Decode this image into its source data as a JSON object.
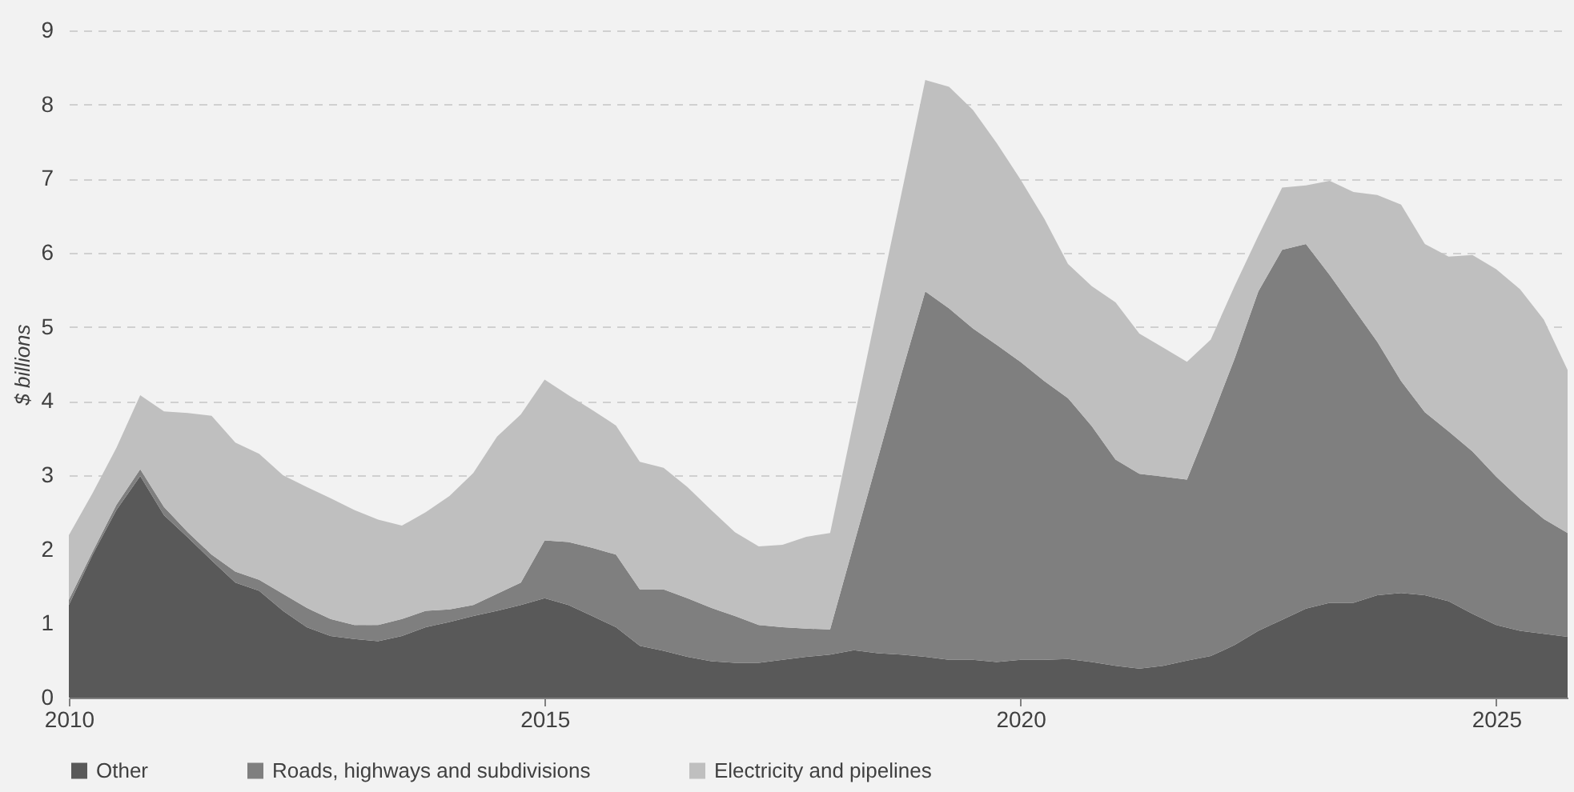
{
  "chart_data": {
    "type": "area",
    "stacked": true,
    "ylabel": "$ billions",
    "x": [
      2010,
      2010.25,
      2010.5,
      2010.75,
      2011,
      2011.25,
      2011.5,
      2011.75,
      2012,
      2012.25,
      2012.5,
      2012.75,
      2013,
      2013.25,
      2013.5,
      2013.75,
      2014,
      2014.25,
      2014.5,
      2014.75,
      2015,
      2015.25,
      2015.5,
      2015.75,
      2016,
      2016.25,
      2016.5,
      2016.75,
      2017,
      2017.25,
      2017.5,
      2017.75,
      2018,
      2018.25,
      2018.5,
      2018.75,
      2019,
      2019.25,
      2019.5,
      2019.75,
      2020,
      2020.25,
      2020.5,
      2020.75,
      2021,
      2021.25,
      2021.5,
      2021.75,
      2022,
      2022.25,
      2022.5,
      2022.75,
      2023,
      2023.25,
      2023.5,
      2023.75,
      2024,
      2024.25,
      2024.5,
      2024.75,
      2025,
      2025.25,
      2025.5,
      2025.75
    ],
    "series": [
      {
        "name": "Other",
        "color": "#595959",
        "values": [
          1.25,
          1.93,
          2.53,
          2.99,
          2.46,
          2.16,
          1.85,
          1.55,
          1.44,
          1.17,
          0.95,
          0.83,
          0.79,
          0.76,
          0.83,
          0.95,
          1.02,
          1.1,
          1.17,
          1.25,
          1.34,
          1.25,
          1.1,
          0.95,
          0.7,
          0.63,
          0.55,
          0.49,
          0.47,
          0.47,
          0.51,
          0.55,
          0.58,
          0.64,
          0.6,
          0.58,
          0.55,
          0.51,
          0.51,
          0.48,
          0.51,
          0.51,
          0.52,
          0.48,
          0.43,
          0.39,
          0.43,
          0.5,
          0.56,
          0.71,
          0.9,
          1.05,
          1.2,
          1.28,
          1.28,
          1.38,
          1.41,
          1.38,
          1.3,
          1.13,
          0.98,
          0.9,
          0.86,
          0.82
        ]
      },
      {
        "name": "Roads, highways and subdivisions",
        "color": "#7f7f7f",
        "values": [
          0.07,
          0.04,
          0.07,
          0.09,
          0.11,
          0.07,
          0.08,
          0.15,
          0.15,
          0.23,
          0.26,
          0.23,
          0.19,
          0.22,
          0.23,
          0.22,
          0.17,
          0.15,
          0.23,
          0.3,
          0.78,
          0.85,
          0.92,
          0.98,
          0.76,
          0.83,
          0.79,
          0.72,
          0.63,
          0.51,
          0.44,
          0.38,
          0.34,
          1.43,
          2.62,
          3.79,
          4.93,
          4.74,
          4.47,
          4.28,
          4.02,
          3.76,
          3.52,
          3.18,
          2.78,
          2.63,
          2.55,
          2.44,
          3.18,
          3.86,
          4.58,
          4.99,
          4.92,
          4.42,
          3.97,
          3.42,
          2.86,
          2.47,
          2.29,
          2.19,
          2.0,
          1.78,
          1.55,
          1.4
        ]
      },
      {
        "name": "Electricity and pipelines",
        "color": "#bfbfbf",
        "values": [
          0.87,
          0.79,
          0.77,
          1.0,
          1.29,
          1.61,
          1.87,
          1.74,
          1.7,
          1.6,
          1.63,
          1.63,
          1.55,
          1.42,
          1.26,
          1.33,
          1.53,
          1.78,
          2.12,
          2.27,
          2.17,
          1.98,
          1.86,
          1.74,
          1.72,
          1.64,
          1.5,
          1.32,
          1.13,
          1.06,
          1.11,
          1.24,
          1.3,
          1.68,
          2.06,
          2.43,
          2.85,
          2.99,
          2.95,
          2.72,
          2.46,
          2.19,
          1.81,
          1.89,
          2.12,
          1.89,
          1.74,
          1.59,
          1.09,
          0.98,
          0.75,
          0.84,
          0.79,
          1.27,
          1.57,
          1.98,
          2.38,
          2.27,
          2.36,
          2.65,
          2.8,
          2.83,
          2.69,
          2.2
        ]
      }
    ],
    "xlim": [
      2010,
      2025.75
    ],
    "xticks": [
      2010,
      2015,
      2020,
      2025
    ],
    "ylim": [
      0,
      9
    ],
    "yticks": [
      0,
      1,
      2,
      3,
      4,
      5,
      6,
      7,
      8,
      9
    ],
    "grid": "y",
    "legend": "bottom"
  }
}
